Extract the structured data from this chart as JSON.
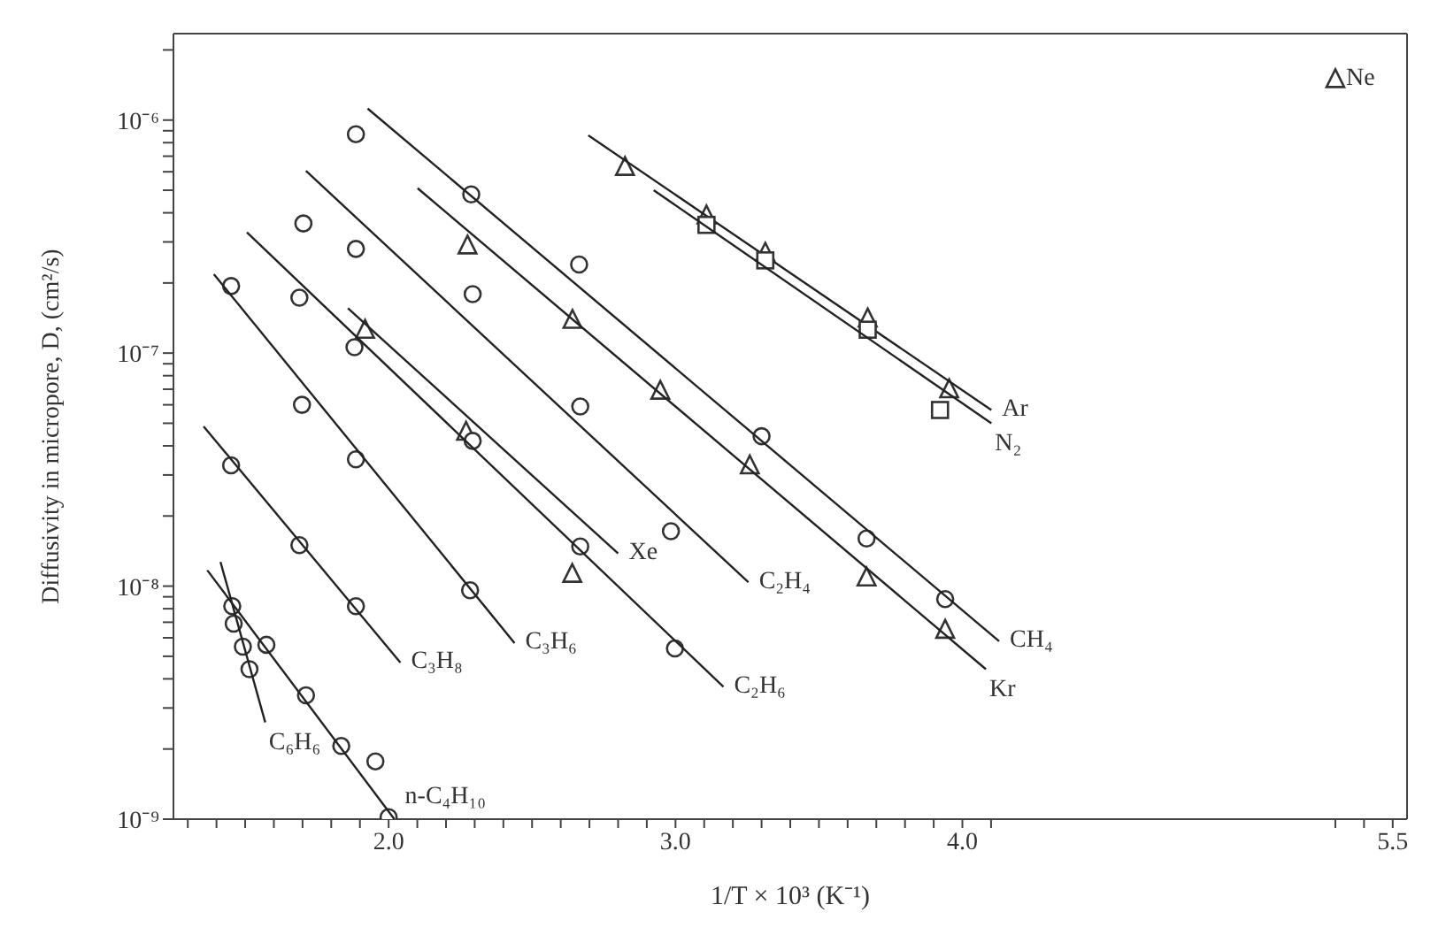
{
  "chart_data": {
    "type": "scatter",
    "xlabel": "1/T × 10³ (K⁻¹)",
    "ylabel": "Diffusivity in micropore, D, (cm²/s)",
    "log": "y",
    "xlim": [
      1.25,
      5.55
    ],
    "ylim": [
      1e-09,
      2.35e-06
    ],
    "xticks": [
      {
        "value": 1.3,
        "label": null
      },
      {
        "value": 1.4,
        "label": null
      },
      {
        "value": 1.5,
        "label": null
      },
      {
        "value": 1.6,
        "label": null
      },
      {
        "value": 1.7,
        "label": null
      },
      {
        "value": 1.8,
        "label": null
      },
      {
        "value": 1.9,
        "label": null
      },
      {
        "value": 2.0,
        "label": "2.0"
      },
      {
        "value": 2.1,
        "label": null
      },
      {
        "value": 2.2,
        "label": null
      },
      {
        "value": 2.3,
        "label": null
      },
      {
        "value": 2.4,
        "label": null
      },
      {
        "value": 2.5,
        "label": null
      },
      {
        "value": 2.6,
        "label": null
      },
      {
        "value": 2.7,
        "label": null
      },
      {
        "value": 2.8,
        "label": null
      },
      {
        "value": 2.9,
        "label": null
      },
      {
        "value": 3.0,
        "label": "3.0"
      },
      {
        "value": 3.1,
        "label": null
      },
      {
        "value": 3.2,
        "label": null
      },
      {
        "value": 3.3,
        "label": null
      },
      {
        "value": 3.4,
        "label": null
      },
      {
        "value": 3.5,
        "label": null
      },
      {
        "value": 3.6,
        "label": null
      },
      {
        "value": 3.7,
        "label": null
      },
      {
        "value": 3.8,
        "label": null
      },
      {
        "value": 3.9,
        "label": null
      },
      {
        "value": 4.0,
        "label": "4.0"
      },
      {
        "value": 4.1,
        "label": null
      },
      {
        "value": 5.3,
        "label": null
      },
      {
        "value": 5.4,
        "label": null
      },
      {
        "value": 5.5,
        "label": "5.5"
      }
    ],
    "yticks": [
      {
        "value": 1e-09,
        "label": "10⁻⁹"
      },
      {
        "value": 2e-09,
        "label": null
      },
      {
        "value": 3e-09,
        "label": null
      },
      {
        "value": 4e-09,
        "label": null
      },
      {
        "value": 5e-09,
        "label": null
      },
      {
        "value": 6e-09,
        "label": null
      },
      {
        "value": 7e-09,
        "label": null
      },
      {
        "value": 8e-09,
        "label": null
      },
      {
        "value": 9e-09,
        "label": null
      },
      {
        "value": 1e-08,
        "label": "10⁻⁸"
      },
      {
        "value": 2e-08,
        "label": null
      },
      {
        "value": 3e-08,
        "label": null
      },
      {
        "value": 4e-08,
        "label": null
      },
      {
        "value": 5e-08,
        "label": null
      },
      {
        "value": 6e-08,
        "label": null
      },
      {
        "value": 7e-08,
        "label": null
      },
      {
        "value": 8e-08,
        "label": null
      },
      {
        "value": 9e-08,
        "label": null
      },
      {
        "value": 1e-07,
        "label": "10⁻⁷"
      },
      {
        "value": 2e-07,
        "label": null
      },
      {
        "value": 3e-07,
        "label": null
      },
      {
        "value": 4e-07,
        "label": null
      },
      {
        "value": 5e-07,
        "label": null
      },
      {
        "value": 6e-07,
        "label": null
      },
      {
        "value": 7e-07,
        "label": null
      },
      {
        "value": 8e-07,
        "label": null
      },
      {
        "value": 9e-07,
        "label": null
      },
      {
        "value": 1e-06,
        "label": "10⁻⁶"
      },
      {
        "value": 2e-06,
        "label": null
      }
    ],
    "series": [
      {
        "type": "scatter",
        "marker": "circle",
        "color": "#333333",
        "x": [
          1.886,
          2.288,
          2.664,
          3.3,
          3.666,
          3.94
        ],
        "values": [
          8.7e-07,
          4.8e-07,
          2.4e-07,
          4.4e-08,
          1.6e-08,
          8.8e-09
        ]
      },
      {
        "type": "line",
        "name": "CH₄",
        "color": "#222222",
        "x": [
          1.927,
          4.128
        ],
        "values": [
          1.12e-06,
          5.8e-09
        ]
      },
      {
        "type": "scatter",
        "marker": "triangle",
        "color": "#333333",
        "x": [
          2.275,
          2.641,
          2.947,
          3.259,
          3.666,
          3.94
        ],
        "values": [
          2.9e-07,
          1.39e-07,
          6.9e-08,
          3.3e-08,
          1.09e-08,
          6.5e-09
        ]
      },
      {
        "type": "line",
        "name": "Kr",
        "color": "#222222",
        "x": [
          2.101,
          4.082
        ],
        "values": [
          5.1e-07,
          4.4e-09
        ]
      },
      {
        "type": "scatter",
        "marker": "triangle",
        "color": "#333333",
        "x": [
          2.824,
          3.108,
          3.313,
          3.67,
          3.954
        ],
        "values": [
          6.3e-07,
          3.9e-07,
          2.7e-07,
          1.41e-07,
          7e-08
        ]
      },
      {
        "type": "line",
        "name": "Ar",
        "color": "#222222",
        "x": [
          2.696,
          4.101
        ],
        "values": [
          8.6e-07,
          5.7e-08
        ]
      },
      {
        "type": "scatter",
        "marker": "square",
        "color": "#333333",
        "x": [
          3.108,
          3.313,
          3.67,
          3.922
        ],
        "values": [
          3.55e-07,
          2.5e-07,
          1.26e-07,
          5.7e-08
        ]
      },
      {
        "type": "line",
        "name": "N₂",
        "color": "#222222",
        "x": [
          2.924,
          4.101
        ],
        "values": [
          5e-07,
          5e-08
        ]
      },
      {
        "name": "Ne",
        "marker": "triangle",
        "color": "#333333",
        "x": [
          5.3
        ],
        "values": [
          1.5e-06
        ]
      },
      {
        "type": "scatter",
        "marker": "circle",
        "color": "#333333",
        "x": [
          1.703,
          1.886,
          2.293,
          2.668,
          2.984
        ],
        "values": [
          3.6e-07,
          2.8e-07,
          1.79e-07,
          5.9e-08,
          1.72e-08
        ]
      },
      {
        "type": "line",
        "name": "C₂H₄",
        "color": "#222222",
        "x": [
          1.712,
          3.254
        ],
        "values": [
          6.05e-07,
          1.04e-08
        ]
      },
      {
        "type": "scatter",
        "marker": "triangle",
        "color": "#333333",
        "x": [
          1.918,
          2.27,
          2.64
        ],
        "values": [
          1.26e-07,
          4.6e-08,
          1.13e-08
        ]
      },
      {
        "type": "line",
        "name": "Xe",
        "color": "#222222",
        "x": [
          1.858,
          2.8
        ],
        "values": [
          1.56e-07,
          1.38e-08
        ]
      },
      {
        "type": "scatter",
        "marker": "circle",
        "color": "#333333",
        "x": [
          1.689,
          1.881,
          2.293,
          2.668,
          2.998
        ],
        "values": [
          1.73e-07,
          1.06e-07,
          4.2e-08,
          1.48e-08,
          5.4e-09
        ]
      },
      {
        "type": "line",
        "name": "C₂H₆",
        "color": "#222222",
        "x": [
          1.506,
          3.167
        ],
        "values": [
          3.3e-07,
          3.7e-09
        ]
      },
      {
        "type": "scatter",
        "marker": "circle",
        "color": "#333333",
        "x": [
          1.451,
          1.698,
          1.886,
          2.284
        ],
        "values": [
          1.94e-07,
          6e-08,
          3.5e-08,
          9.6e-09
        ]
      },
      {
        "type": "line",
        "name": "C₃H₆",
        "color": "#222222",
        "x": [
          1.391,
          2.439
        ],
        "values": [
          2.18e-07,
          5.7e-09
        ]
      },
      {
        "type": "scatter",
        "marker": "circle",
        "color": "#333333",
        "x": [
          1.451,
          1.689,
          1.886
        ],
        "values": [
          3.3e-08,
          1.5e-08,
          8.2e-09
        ]
      },
      {
        "type": "line",
        "name": "C₃H₈",
        "color": "#222222",
        "x": [
          1.355,
          2.041
        ],
        "values": [
          4.85e-08,
          4.7e-09
        ]
      },
      {
        "type": "scatter",
        "marker": "circle",
        "color": "#333333",
        "x": [
          1.455,
          1.574,
          1.712,
          1.835,
          1.954,
          2.0
        ],
        "values": [
          8.2e-09,
          5.6e-09,
          3.4e-09,
          2.06e-09,
          1.77e-09,
          1.02e-09
        ]
      },
      {
        "type": "line",
        "name": "n-C₄H₁₀",
        "color": "#222222",
        "x": [
          1.368,
          2.02
        ],
        "values": [
          1.17e-08,
          1e-09
        ]
      },
      {
        "type": "scatter",
        "marker": "circle",
        "color": "#333333",
        "x": [
          1.46,
          1.492,
          1.515
        ],
        "values": [
          6.9e-09,
          5.5e-09,
          4.4e-09
        ]
      },
      {
        "type": "line",
        "name": "C₆H₆",
        "color": "#222222",
        "x": [
          1.414,
          1.57
        ],
        "values": [
          1.27e-08,
          2.6e-09
        ]
      }
    ]
  }
}
